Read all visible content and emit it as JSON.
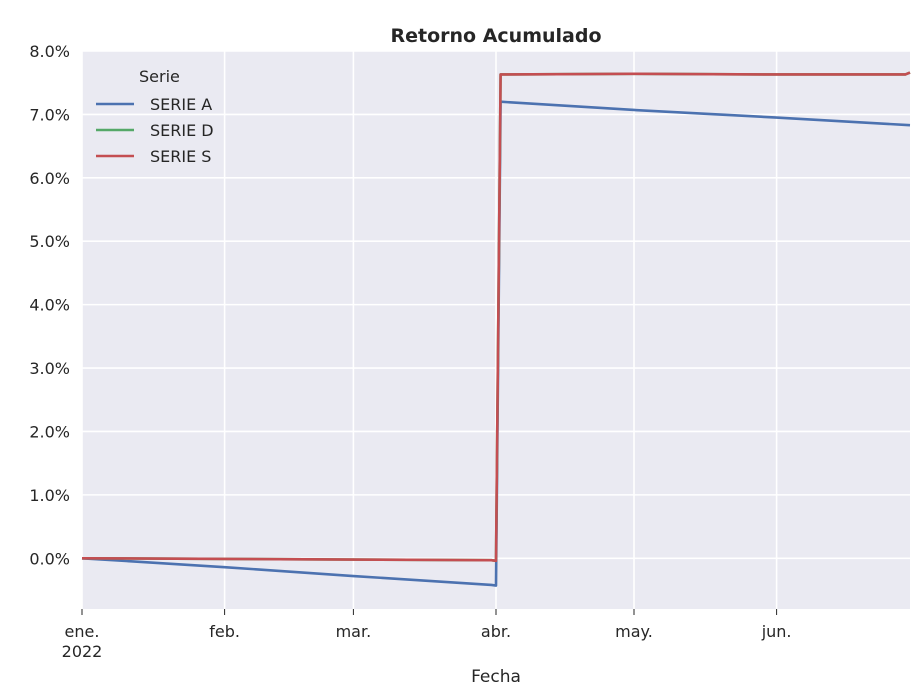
{
  "chart_data": {
    "type": "line",
    "title": "Retorno Acumulado",
    "xlabel": "Fecha",
    "ylabel": "",
    "x_ticks": [
      {
        "date": "2022-01-01",
        "label": "ene.",
        "sublabel": "2022"
      },
      {
        "date": "2022-02-01",
        "label": "feb.",
        "sublabel": ""
      },
      {
        "date": "2022-03-01",
        "label": "mar.",
        "sublabel": ""
      },
      {
        "date": "2022-04-01",
        "label": "abr.",
        "sublabel": ""
      },
      {
        "date": "2022-05-01",
        "label": "may.",
        "sublabel": ""
      },
      {
        "date": "2022-06-01",
        "label": "jun.",
        "sublabel": ""
      }
    ],
    "xlim": [
      "2022-01-01",
      "2022-06-30"
    ],
    "ylim": [
      -0.8,
      8.0
    ],
    "y_ticks": [
      0,
      1,
      2,
      3,
      4,
      5,
      6,
      7,
      8
    ],
    "y_tick_format": "percent_1dp",
    "grid": true,
    "legend": {
      "title": "Serie",
      "placement": "top-left"
    },
    "series": [
      {
        "name": "SERIE A",
        "color": "#4c72b0",
        "points": [
          [
            "2022-01-01",
            0.0
          ],
          [
            "2022-02-01",
            -0.14
          ],
          [
            "2022-03-01",
            -0.28
          ],
          [
            "2022-03-31",
            -0.42
          ],
          [
            "2022-04-01",
            -0.43
          ],
          [
            "2022-04-02",
            7.2
          ],
          [
            "2022-05-01",
            7.07
          ],
          [
            "2022-06-01",
            6.95
          ],
          [
            "2022-06-30",
            6.83
          ]
        ]
      },
      {
        "name": "SERIE D",
        "color": "#55a868",
        "points": [
          [
            "2022-01-01",
            0.0
          ],
          [
            "2022-02-01",
            -0.01
          ],
          [
            "2022-03-01",
            -0.02
          ],
          [
            "2022-03-31",
            -0.03
          ],
          [
            "2022-04-01",
            -0.04
          ],
          [
            "2022-04-02",
            7.63
          ],
          [
            "2022-05-01",
            7.64
          ],
          [
            "2022-06-01",
            7.63
          ],
          [
            "2022-06-29",
            7.63
          ],
          [
            "2022-06-30",
            7.66
          ]
        ]
      },
      {
        "name": "SERIE S",
        "color": "#c44e52",
        "points": [
          [
            "2022-01-01",
            0.0
          ],
          [
            "2022-02-01",
            -0.01
          ],
          [
            "2022-03-01",
            -0.02
          ],
          [
            "2022-03-31",
            -0.03
          ],
          [
            "2022-04-01",
            -0.04
          ],
          [
            "2022-04-02",
            7.63
          ],
          [
            "2022-05-01",
            7.64
          ],
          [
            "2022-06-01",
            7.63
          ],
          [
            "2022-06-29",
            7.63
          ],
          [
            "2022-06-30",
            7.66
          ]
        ]
      }
    ]
  }
}
